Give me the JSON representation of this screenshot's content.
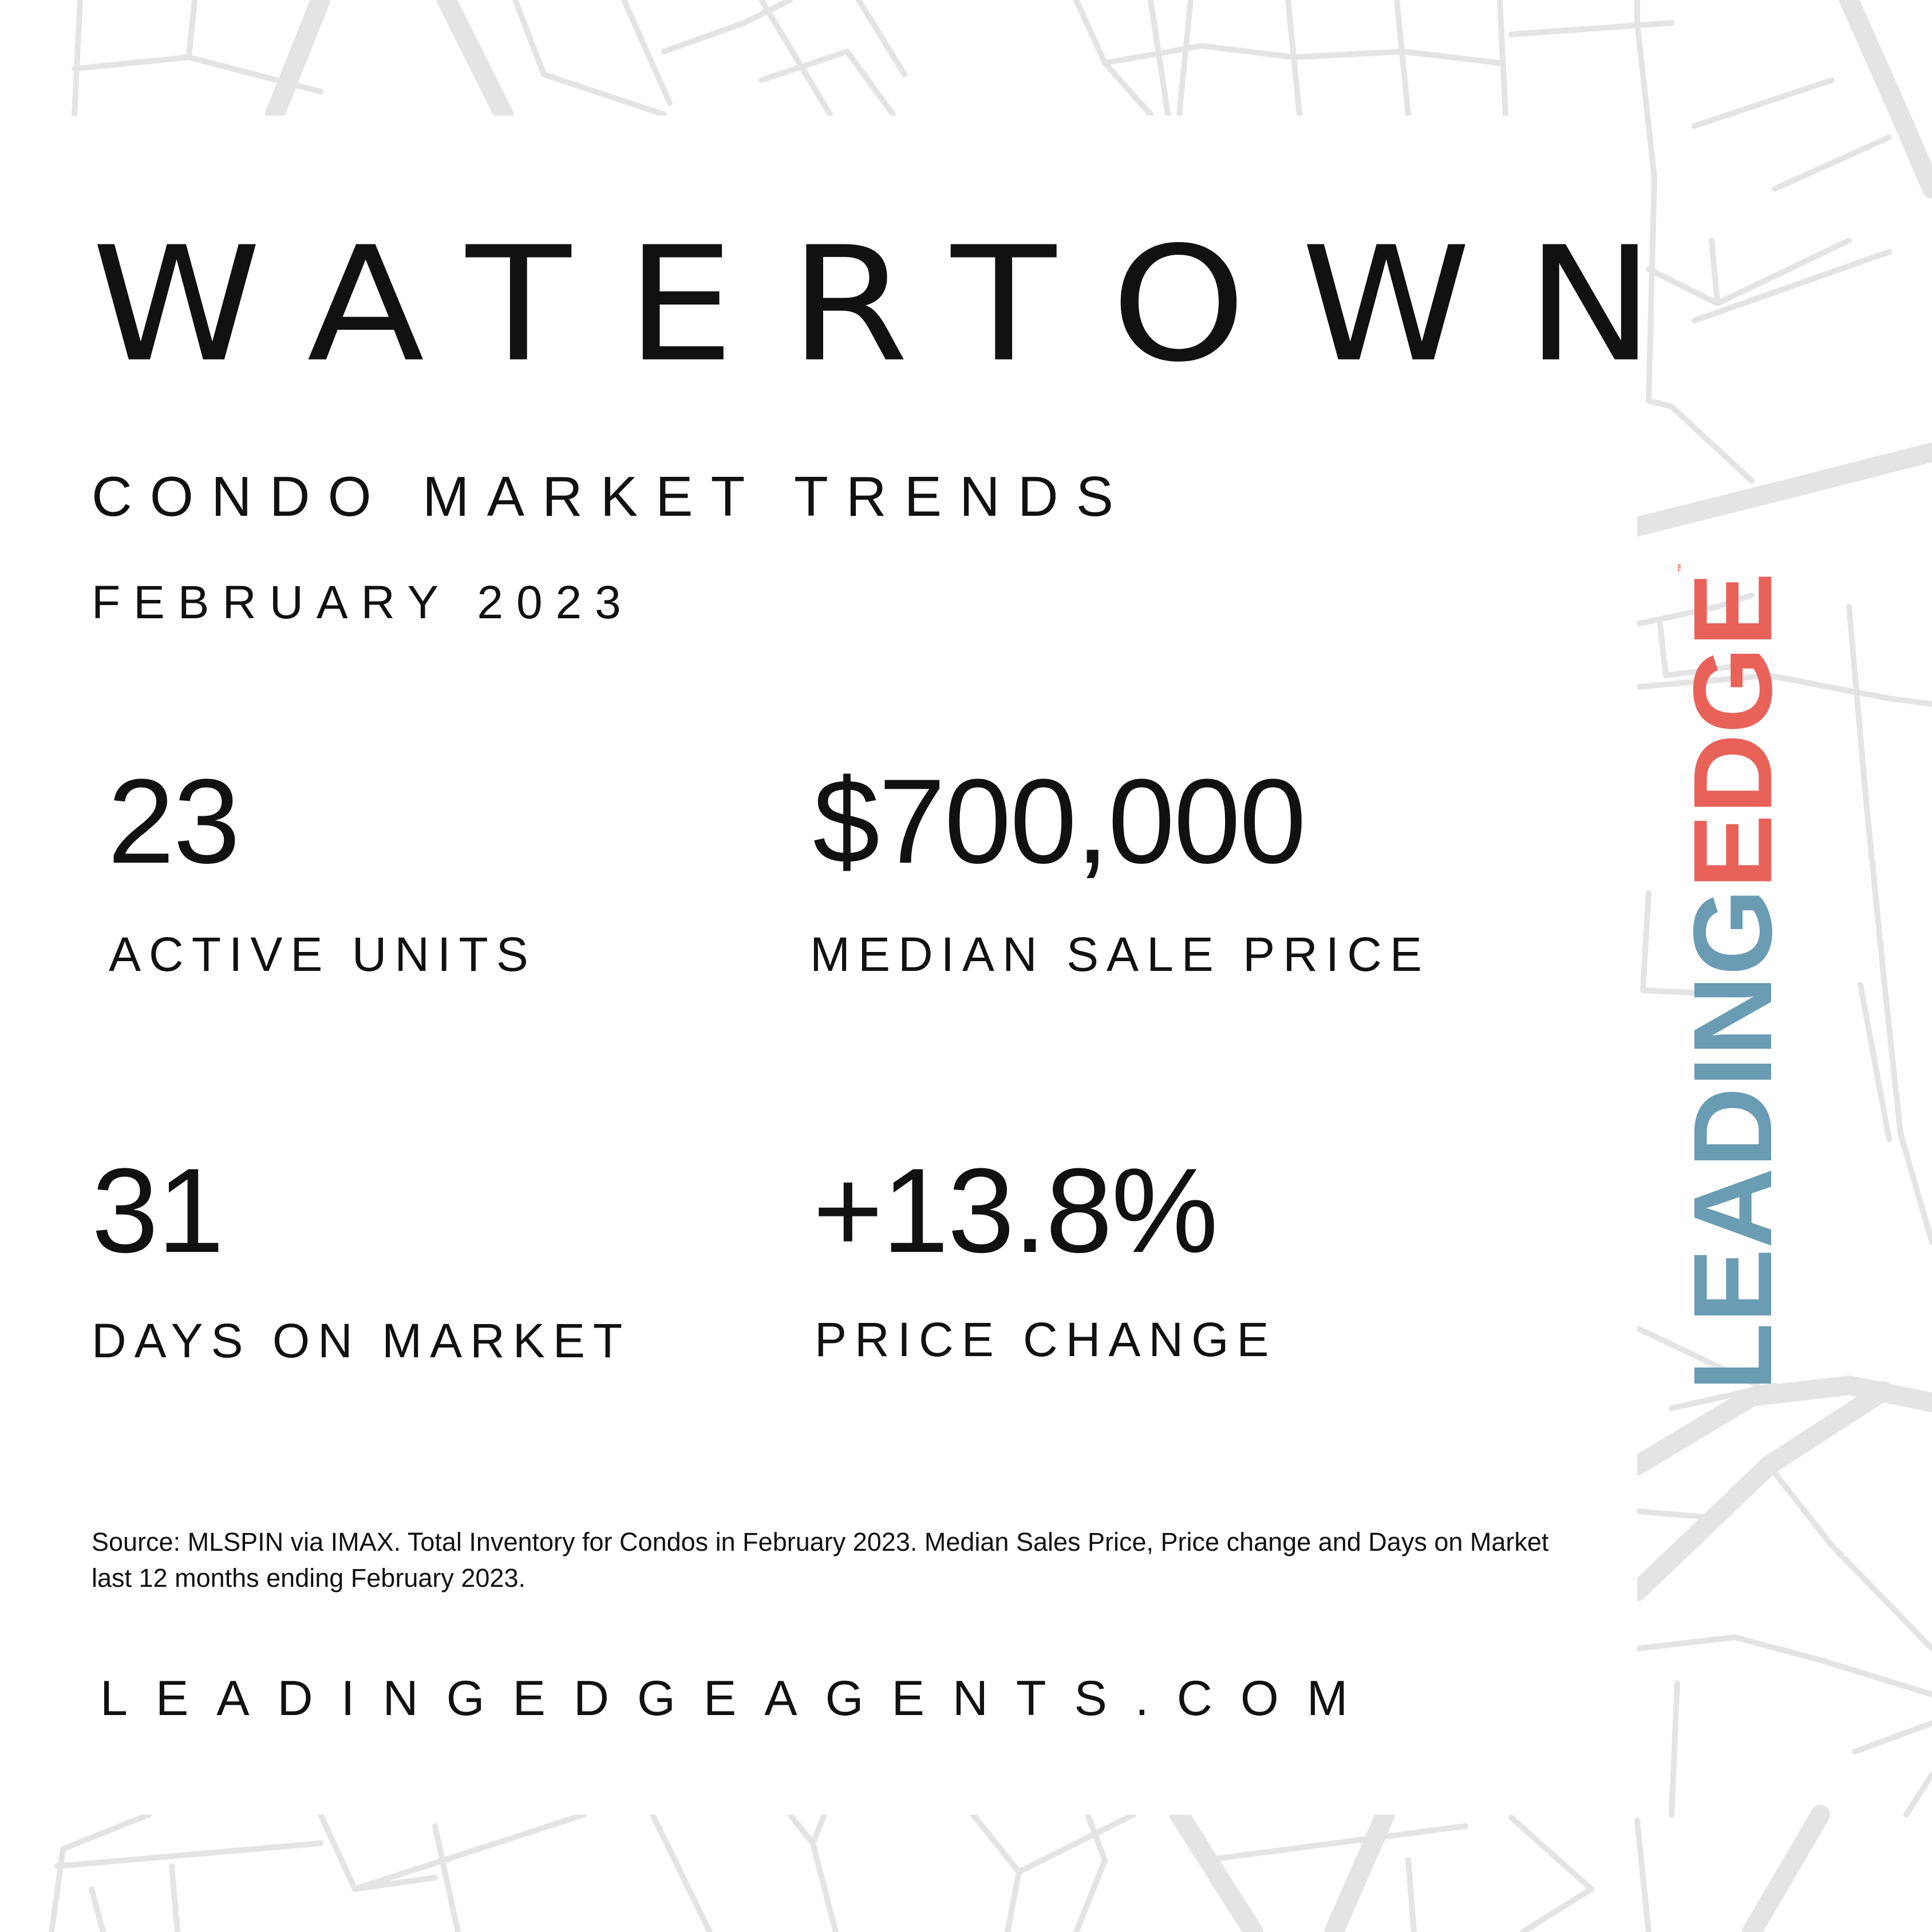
{
  "header": {
    "city": "WATERTOWN",
    "subtitle": "CONDO MARKET TRENDS",
    "date": "FEBRUARY 2023"
  },
  "stats": [
    {
      "value": "23",
      "label": "ACTIVE UNITS"
    },
    {
      "value": "$700,000",
      "label": "MEDIAN SALE PRICE"
    },
    {
      "value": "31",
      "label": "DAYS ON MARKET"
    },
    {
      "value": "+13.8%",
      "label": "PRICE CHANGE"
    }
  ],
  "footer": {
    "source": "Source: MLSPIN via IMAX. Total Inventory for Condos in February 2023. Median Sales Price, Price change and Days on Market last 12 months ending February 2023.",
    "website": "LEADINGEDGEAGENTS.COM"
  },
  "logo": {
    "part1": "LEADING",
    "part2": "EDGE",
    "trademark": "™",
    "color_part1": "#6a9cb3",
    "color_part2": "#e8625a"
  },
  "colors": {
    "map_lines": "#e3e4e6",
    "text": "#111111",
    "background": "#ffffff"
  }
}
